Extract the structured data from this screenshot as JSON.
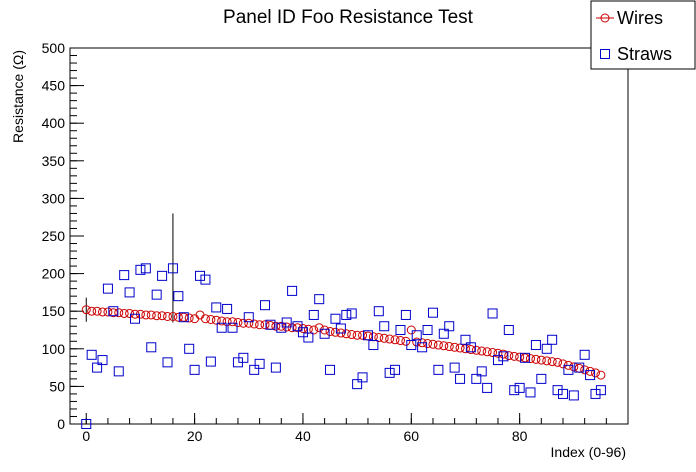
{
  "chart_data": {
    "type": "scatter",
    "title": "Panel ID Foo Resistance Test",
    "xlabel": "Index (0-96)",
    "ylabel": "Resistance (Ω)",
    "xlim": [
      -3,
      100
    ],
    "ylim": [
      0,
      500
    ],
    "x_ticks": [
      0,
      20,
      40,
      60,
      80
    ],
    "y_ticks": [
      0,
      50,
      100,
      150,
      200,
      250,
      300,
      350,
      400,
      450,
      500
    ],
    "grid": false,
    "legend_placement": "top-right",
    "series": [
      {
        "name": "Wires",
        "marker": "circle",
        "color": "#cc0000",
        "x": [
          0,
          1,
          2,
          3,
          4,
          5,
          6,
          7,
          8,
          9,
          10,
          11,
          12,
          13,
          14,
          15,
          16,
          17,
          18,
          19,
          20,
          21,
          22,
          23,
          24,
          25,
          26,
          27,
          28,
          29,
          30,
          31,
          32,
          33,
          34,
          35,
          36,
          37,
          38,
          39,
          40,
          41,
          42,
          43,
          44,
          45,
          46,
          47,
          48,
          49,
          50,
          51,
          52,
          53,
          54,
          55,
          56,
          57,
          58,
          59,
          60,
          61,
          62,
          63,
          64,
          65,
          66,
          67,
          68,
          69,
          70,
          71,
          72,
          73,
          74,
          75,
          76,
          77,
          78,
          79,
          80,
          81,
          82,
          83,
          84,
          85,
          86,
          87,
          88,
          89,
          90,
          91,
          92,
          93,
          94,
          95
        ],
        "values": [
          152,
          150,
          150,
          149,
          149,
          148,
          148,
          147,
          147,
          146,
          146,
          145,
          145,
          144,
          144,
          143,
          143,
          142,
          142,
          141,
          140,
          145,
          140,
          139,
          138,
          137,
          136,
          136,
          135,
          134,
          134,
          133,
          132,
          132,
          131,
          130,
          130,
          129,
          128,
          128,
          127,
          126,
          125,
          128,
          125,
          123,
          122,
          121,
          120,
          119,
          118,
          118,
          117,
          116,
          115,
          114,
          113,
          112,
          111,
          110,
          125,
          109,
          108,
          107,
          106,
          105,
          104,
          103,
          102,
          101,
          100,
          99,
          98,
          97,
          96,
          95,
          94,
          93,
          91,
          90,
          89,
          88,
          87,
          86,
          85,
          84,
          83,
          82,
          80,
          78,
          76,
          74,
          72,
          70,
          68,
          65
        ],
        "error_bars": [
          {
            "x": 0,
            "low": 136,
            "high": 168
          }
        ]
      },
      {
        "name": "Straws",
        "marker": "square",
        "color": "#0000cc",
        "x": [
          0,
          1,
          2,
          3,
          4,
          5,
          6,
          7,
          8,
          9,
          10,
          11,
          12,
          13,
          14,
          15,
          16,
          17,
          18,
          19,
          20,
          21,
          22,
          23,
          24,
          25,
          26,
          27,
          28,
          29,
          30,
          31,
          32,
          33,
          34,
          35,
          36,
          37,
          38,
          39,
          40,
          41,
          42,
          43,
          44,
          45,
          46,
          47,
          48,
          49,
          50,
          51,
          52,
          53,
          54,
          55,
          56,
          57,
          58,
          59,
          60,
          61,
          62,
          63,
          64,
          65,
          66,
          67,
          68,
          69,
          70,
          71,
          72,
          73,
          74,
          75,
          76,
          77,
          78,
          79,
          80,
          81,
          82,
          83,
          84,
          85,
          86,
          87,
          88,
          89,
          90,
          91,
          92,
          93,
          94,
          95
        ],
        "values": [
          0,
          92,
          75,
          85,
          180,
          150,
          70,
          198,
          175,
          140,
          205,
          207,
          102,
          172,
          197,
          82,
          207,
          170,
          142,
          100,
          72,
          197,
          192,
          83,
          155,
          128,
          153,
          128,
          82,
          88,
          142,
          72,
          80,
          158,
          132,
          75,
          128,
          135,
          177,
          130,
          122,
          115,
          145,
          166,
          120,
          72,
          140,
          127,
          145,
          147,
          53,
          62,
          118,
          105,
          150,
          130,
          68,
          72,
          125,
          145,
          105,
          118,
          102,
          125,
          148,
          72,
          120,
          130,
          75,
          60,
          112,
          102,
          60,
          70,
          48,
          147,
          85,
          90,
          125,
          45,
          48,
          88,
          42,
          105,
          60,
          100,
          112,
          45,
          40,
          72,
          38,
          75,
          92,
          65,
          40,
          45
        ],
        "error_bars": [
          {
            "x": 16,
            "low": 135,
            "high": 280
          }
        ]
      }
    ]
  }
}
